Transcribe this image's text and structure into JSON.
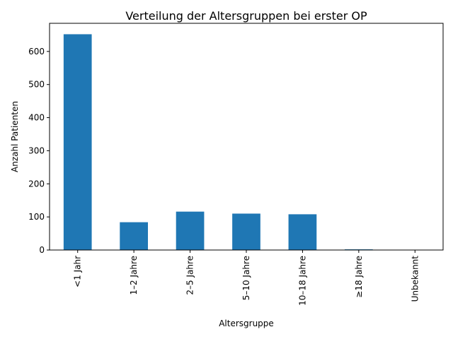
{
  "chart_data": {
    "type": "bar",
    "title": "Verteilung der Altersgruppen bei erster OP",
    "xlabel": "Altersgruppe",
    "ylabel": "Anzahl Patienten",
    "categories": [
      "<1 Jahr",
      "1–2 Jahre",
      "2–5 Jahre",
      "5–10 Jahre",
      "10–18 Jahre",
      "≥18 Jahre",
      "Unbekannt"
    ],
    "values": [
      652,
      84,
      116,
      110,
      108,
      2,
      0
    ],
    "ylim": [
      0,
      685
    ],
    "yticks": [
      0,
      100,
      200,
      300,
      400,
      500,
      600
    ],
    "grid": false,
    "bar_color": "#1f77b4"
  }
}
